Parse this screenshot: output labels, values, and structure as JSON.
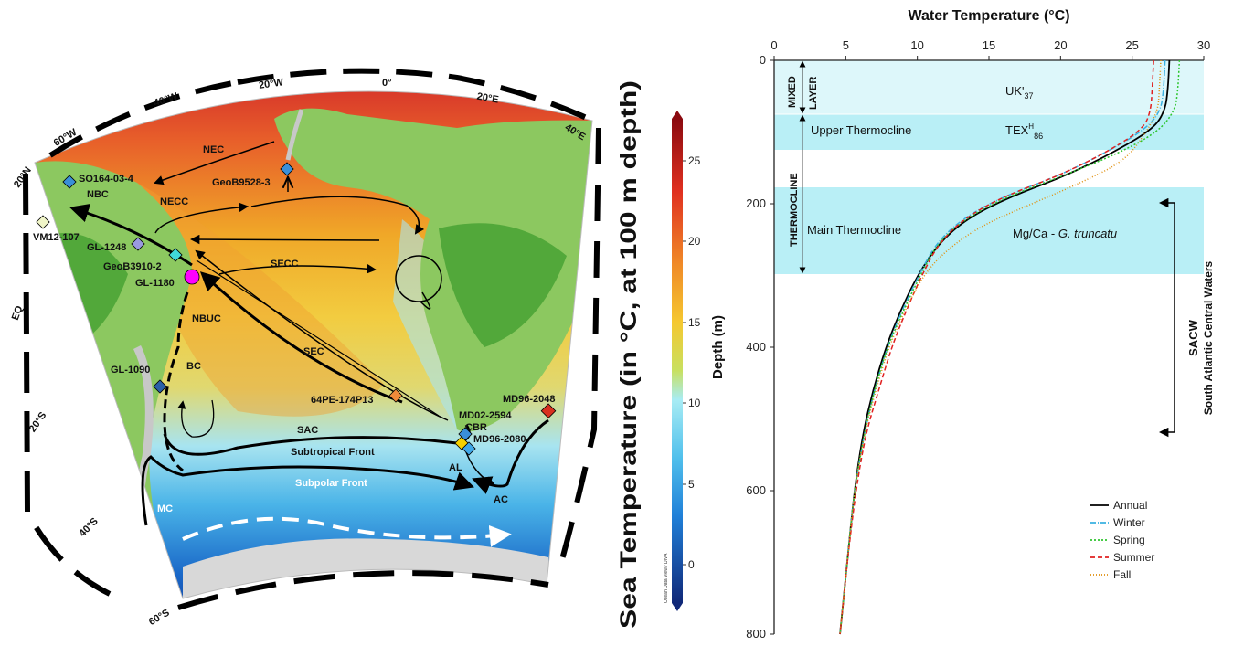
{
  "map": {
    "colorbar_title": "Sea Temperature (in °C, at 100 m depth)",
    "colorbar_credit": "Ocean Data View / DIVA",
    "colorbar_ticks": [
      "25",
      "20",
      "15",
      "10",
      "5",
      "0"
    ],
    "graticule": {
      "lon": [
        "60°W",
        "40°W",
        "20°W",
        "0°",
        "20°E",
        "40°E"
      ],
      "lat": [
        "20°N",
        "EQ",
        "20°S",
        "40°S",
        "60°S"
      ]
    },
    "currents": [
      "NEC",
      "NBC",
      "NECC",
      "SECC",
      "SEC",
      "NBUC",
      "BC",
      "SAC",
      "Subtropical Front",
      "Subpolar Front",
      "MC",
      "AL",
      "AC"
    ],
    "sites": [
      {
        "name": "SO164-03-4",
        "color": "#3a8fd8"
      },
      {
        "name": "GeoB9528-3",
        "color": "#3a8fd8"
      },
      {
        "name": "VM12-107",
        "color": "#f0f5c8"
      },
      {
        "name": "GL-1248",
        "color": "#9a9ae0"
      },
      {
        "name": "GeoB3910-2",
        "color": "#40d8d8"
      },
      {
        "name": "GL-1180",
        "color": "#ff00ff"
      },
      {
        "name": "GL-1090",
        "color": "#2a60a8"
      },
      {
        "name": "64PE-174P13",
        "color": "#f08a3a"
      },
      {
        "name": "MD02-2594",
        "color": "#3a8fd8"
      },
      {
        "name": "CBR",
        "color": "#f5d000"
      },
      {
        "name": "MD96-2080",
        "color": "#40a8e8"
      },
      {
        "name": "MD96-2048",
        "color": "#d83020"
      }
    ]
  },
  "chart_data": {
    "type": "line",
    "title": "Water Temperature (°C)",
    "xlabel": "Water Temperature (°C)",
    "ylabel": "Depth (m)",
    "xlim": [
      0,
      30
    ],
    "ylim": [
      800,
      0
    ],
    "x_ticks": [
      "0",
      "5",
      "10",
      "15",
      "20",
      "25",
      "30"
    ],
    "y_ticks": [
      "0",
      "200",
      "400",
      "600",
      "800"
    ],
    "legend_position": "bottom-right",
    "zones": [
      {
        "label": "MIXED LAYER",
        "depth_range": [
          0,
          75
        ],
        "proxy": "UK'37"
      },
      {
        "label": "Upper Thermocline",
        "depth_range": [
          75,
          125
        ],
        "proxy": "TEXH86"
      },
      {
        "label": "Main Thermocline",
        "depth_range": [
          180,
          300
        ],
        "proxy": "Mg/Ca - G. truncatu"
      }
    ],
    "thermocline_label": "THERMOCLINE",
    "proxies": {
      "uk": "UK'",
      "uk_sub": "37",
      "tex": "TEX",
      "tex_sup": "H",
      "tex_sub": "86",
      "mgca": "Mg/Ca - ",
      "mgca_italic": "G. truncatu"
    },
    "mixed_label": [
      "MIXED",
      "LAYER"
    ],
    "water_mass": {
      "abbr": "SACW",
      "name": "South Atlantic Central Waters",
      "depth_range": [
        200,
        520
      ]
    },
    "series": [
      {
        "name": "Annual",
        "color": "#000000",
        "dash": "",
        "points": [
          [
            27.6,
            0
          ],
          [
            27.5,
            40
          ],
          [
            27.3,
            70
          ],
          [
            26.5,
            95
          ],
          [
            24.0,
            125
          ],
          [
            20.5,
            160
          ],
          [
            16.5,
            190
          ],
          [
            13.5,
            220
          ],
          [
            11.5,
            255
          ],
          [
            10.0,
            300
          ],
          [
            8.8,
            350
          ],
          [
            7.8,
            400
          ],
          [
            6.9,
            460
          ],
          [
            6.2,
            520
          ],
          [
            5.6,
            600
          ],
          [
            5.1,
            700
          ],
          [
            4.6,
            800
          ]
        ]
      },
      {
        "name": "Winter",
        "color": "#3ab0e0",
        "dash": "6,2,1,2",
        "points": [
          [
            27.3,
            0
          ],
          [
            27.2,
            40
          ],
          [
            27.0,
            70
          ],
          [
            26.0,
            95
          ],
          [
            23.5,
            125
          ],
          [
            20.0,
            160
          ],
          [
            16.0,
            190
          ],
          [
            13.2,
            220
          ],
          [
            11.3,
            255
          ],
          [
            10.1,
            300
          ],
          [
            8.9,
            350
          ],
          [
            7.9,
            400
          ],
          [
            7.0,
            460
          ],
          [
            6.3,
            520
          ],
          [
            5.6,
            600
          ],
          [
            5.1,
            700
          ],
          [
            4.6,
            800
          ]
        ]
      },
      {
        "name": "Spring",
        "color": "#2ec52e",
        "dash": "2,2",
        "points": [
          [
            28.3,
            0
          ],
          [
            28.2,
            40
          ],
          [
            28.0,
            70
          ],
          [
            26.8,
            100
          ],
          [
            24.0,
            130
          ],
          [
            20.3,
            160
          ],
          [
            16.3,
            190
          ],
          [
            13.4,
            220
          ],
          [
            11.4,
            255
          ],
          [
            10.2,
            300
          ],
          [
            9.0,
            350
          ],
          [
            7.9,
            400
          ],
          [
            7.0,
            460
          ],
          [
            6.3,
            520
          ],
          [
            5.6,
            600
          ],
          [
            5.1,
            700
          ],
          [
            4.6,
            800
          ]
        ]
      },
      {
        "name": "Summer",
        "color": "#e02020",
        "dash": "5,3",
        "points": [
          [
            26.5,
            0
          ],
          [
            26.4,
            40
          ],
          [
            26.3,
            70
          ],
          [
            25.8,
            95
          ],
          [
            23.5,
            125
          ],
          [
            20.0,
            160
          ],
          [
            16.0,
            190
          ],
          [
            13.3,
            220
          ],
          [
            11.5,
            255
          ],
          [
            10.3,
            300
          ],
          [
            9.2,
            350
          ],
          [
            8.2,
            400
          ],
          [
            7.3,
            460
          ],
          [
            6.4,
            520
          ],
          [
            5.7,
            600
          ],
          [
            5.1,
            700
          ],
          [
            4.6,
            800
          ]
        ]
      },
      {
        "name": "Fall",
        "color": "#e09010",
        "dash": "1,2",
        "points": [
          [
            27.0,
            0
          ],
          [
            26.9,
            40
          ],
          [
            26.8,
            70
          ],
          [
            26.0,
            100
          ],
          [
            24.5,
            140
          ],
          [
            21.5,
            170
          ],
          [
            18.0,
            200
          ],
          [
            14.5,
            230
          ],
          [
            12.0,
            265
          ],
          [
            10.4,
            300
          ],
          [
            9.1,
            350
          ],
          [
            8.0,
            400
          ],
          [
            7.1,
            460
          ],
          [
            6.3,
            520
          ],
          [
            5.6,
            600
          ],
          [
            5.1,
            700
          ],
          [
            4.6,
            800
          ]
        ]
      }
    ]
  }
}
